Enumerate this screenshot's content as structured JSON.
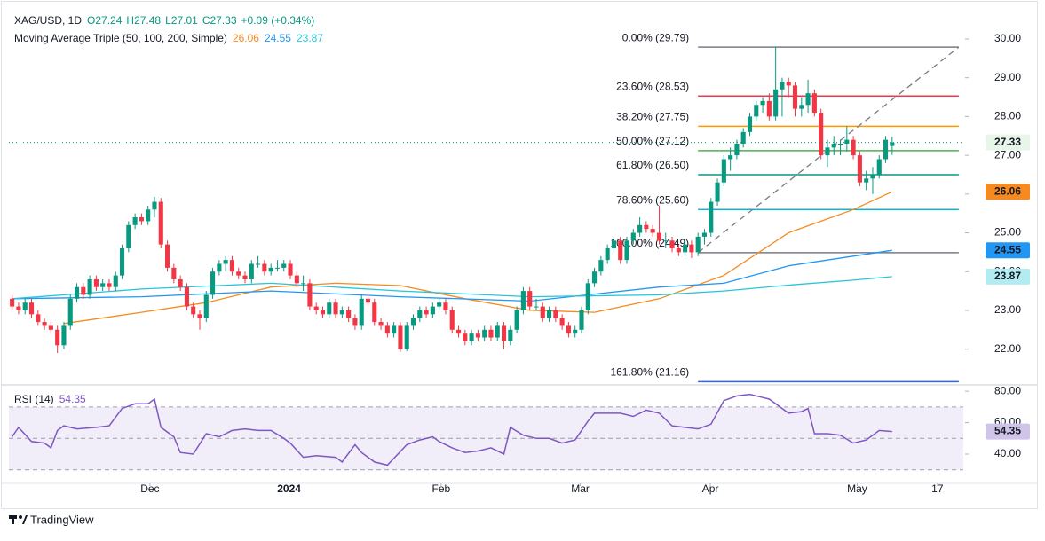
{
  "chart_data": {
    "type": "candlestick",
    "symbol": "XAG/USD, 1D",
    "ohlc_header": [
      "O27.24",
      "H27.48",
      "L27.01",
      "C27.33",
      "+0.09 (+0.34%)"
    ],
    "legend_title": "Moving Average Triple (50, 100, 200, Simple)",
    "up_color": "#089981",
    "down_color": "#f23645",
    "ylim": [
      21.1,
      30.8
    ],
    "yticks": [
      {
        "value": 22,
        "label": "22.00"
      },
      {
        "value": 23,
        "label": "23.00"
      },
      {
        "value": 24,
        "label": "24.00"
      },
      {
        "value": 25,
        "label": "25.00"
      },
      {
        "value": 26,
        "label": "26.00"
      },
      {
        "value": 27,
        "label": "27.00"
      },
      {
        "value": 28,
        "label": "28.00"
      },
      {
        "value": 29,
        "label": "29.00"
      },
      {
        "value": 30,
        "label": "30.00"
      }
    ],
    "xlim": [
      -0.5,
      147
    ],
    "xticks": [
      {
        "value": 21.3,
        "label": "Dec"
      },
      {
        "value": 42.8,
        "label": "2024"
      },
      {
        "value": 66.3,
        "label": "Feb"
      },
      {
        "value": 87.8,
        "label": "Mar"
      },
      {
        "value": 107.9,
        "label": "Apr"
      },
      {
        "value": 130.6,
        "label": "May"
      },
      {
        "value": 143,
        "label": "17"
      }
    ],
    "candles": [
      [
        23.3,
        23.4,
        23.0,
        23.1
      ],
      [
        23.1,
        23.2,
        22.9,
        23.0
      ],
      [
        23.0,
        23.3,
        22.9,
        23.2
      ],
      [
        23.2,
        23.3,
        22.8,
        22.9
      ],
      [
        22.9,
        23.0,
        22.6,
        22.7
      ],
      [
        22.7,
        22.8,
        22.5,
        22.6
      ],
      [
        22.6,
        22.7,
        22.4,
        22.5
      ],
      [
        22.5,
        22.6,
        21.9,
        22.1
      ],
      [
        22.1,
        22.7,
        22.0,
        22.6
      ],
      [
        22.6,
        23.4,
        22.5,
        23.3
      ],
      [
        23.3,
        23.7,
        23.2,
        23.6
      ],
      [
        23.6,
        23.7,
        23.3,
        23.4
      ],
      [
        23.4,
        23.9,
        23.3,
        23.8
      ],
      [
        23.8,
        23.9,
        23.5,
        23.6
      ],
      [
        23.6,
        23.8,
        23.5,
        23.7
      ],
      [
        23.7,
        23.8,
        23.5,
        23.6
      ],
      [
        23.6,
        24.0,
        23.5,
        23.9
      ],
      [
        23.9,
        24.7,
        23.8,
        24.6
      ],
      [
        24.6,
        25.3,
        24.5,
        25.2
      ],
      [
        25.2,
        25.5,
        25.1,
        25.4
      ],
      [
        25.4,
        25.5,
        25.2,
        25.3
      ],
      [
        25.3,
        25.7,
        25.2,
        25.6
      ],
      [
        25.6,
        25.93,
        25.4,
        25.8
      ],
      [
        25.8,
        25.9,
        24.6,
        24.7
      ],
      [
        24.7,
        24.8,
        24.0,
        24.1
      ],
      [
        24.1,
        24.2,
        23.7,
        23.8
      ],
      [
        23.8,
        23.9,
        23.5,
        23.6
      ],
      [
        23.6,
        23.7,
        23.0,
        23.1
      ],
      [
        23.1,
        23.2,
        22.8,
        22.9
      ],
      [
        22.9,
        23.0,
        22.5,
        22.8
      ],
      [
        22.8,
        23.5,
        22.7,
        23.4
      ],
      [
        23.4,
        24.1,
        23.3,
        24.0
      ],
      [
        24.0,
        24.3,
        23.9,
        24.2
      ],
      [
        24.2,
        24.4,
        24.0,
        24.3
      ],
      [
        24.3,
        24.4,
        23.9,
        24.0
      ],
      [
        24.0,
        24.1,
        23.8,
        23.9
      ],
      [
        23.9,
        24.0,
        23.7,
        23.8
      ],
      [
        23.8,
        24.3,
        23.7,
        24.2
      ],
      [
        24.2,
        24.4,
        24.1,
        24.2
      ],
      [
        24.2,
        24.3,
        23.9,
        24.0
      ],
      [
        24.0,
        24.2,
        23.9,
        24.1
      ],
      [
        24.1,
        24.3,
        24.0,
        24.1
      ],
      [
        24.1,
        24.3,
        24.0,
        24.2
      ],
      [
        24.2,
        24.3,
        23.8,
        23.9
      ],
      [
        23.9,
        24.0,
        23.6,
        23.7
      ],
      [
        23.7,
        23.9,
        23.5,
        23.7
      ],
      [
        23.7,
        23.8,
        23.0,
        23.1
      ],
      [
        23.1,
        23.2,
        22.9,
        23.0
      ],
      [
        23.0,
        23.1,
        22.8,
        22.9
      ],
      [
        22.9,
        23.3,
        22.8,
        23.2
      ],
      [
        23.2,
        23.3,
        22.8,
        22.9
      ],
      [
        22.9,
        23.1,
        22.8,
        23.0
      ],
      [
        23.0,
        23.1,
        22.7,
        22.8
      ],
      [
        22.8,
        22.9,
        22.5,
        22.6
      ],
      [
        22.6,
        23.4,
        22.5,
        23.3
      ],
      [
        23.3,
        23.4,
        23.1,
        23.2
      ],
      [
        23.2,
        23.3,
        22.6,
        22.7
      ],
      [
        22.7,
        22.8,
        22.5,
        22.6
      ],
      [
        22.6,
        22.7,
        22.3,
        22.4
      ],
      [
        22.4,
        22.7,
        22.3,
        22.6
      ],
      [
        22.6,
        22.7,
        21.93,
        22.0
      ],
      [
        22.0,
        22.7,
        21.95,
        22.6
      ],
      [
        22.6,
        22.9,
        22.5,
        22.8
      ],
      [
        22.8,
        23.1,
        22.7,
        23.0
      ],
      [
        23.0,
        23.1,
        22.8,
        22.9
      ],
      [
        22.9,
        23.2,
        22.8,
        23.1
      ],
      [
        23.1,
        23.3,
        23.0,
        23.2
      ],
      [
        23.2,
        23.3,
        22.9,
        23.0
      ],
      [
        23.0,
        23.1,
        22.4,
        22.5
      ],
      [
        22.5,
        22.6,
        22.3,
        22.4
      ],
      [
        22.4,
        22.5,
        22.1,
        22.2
      ],
      [
        22.2,
        22.5,
        22.1,
        22.4
      ],
      [
        22.4,
        22.5,
        22.2,
        22.3
      ],
      [
        22.3,
        22.6,
        22.2,
        22.5
      ],
      [
        22.5,
        22.6,
        22.2,
        22.3
      ],
      [
        22.3,
        22.7,
        22.2,
        22.6
      ],
      [
        22.6,
        22.7,
        22.0,
        22.2
      ],
      [
        22.2,
        22.6,
        22.1,
        22.5
      ],
      [
        22.5,
        23.1,
        22.4,
        23.0
      ],
      [
        23.0,
        23.6,
        22.9,
        23.5
      ],
      [
        23.5,
        23.6,
        23.0,
        23.1
      ],
      [
        23.1,
        23.3,
        23.0,
        23.1
      ],
      [
        23.1,
        23.2,
        22.7,
        22.8
      ],
      [
        22.8,
        23.1,
        22.7,
        23.0
      ],
      [
        23.0,
        23.1,
        22.7,
        22.8
      ],
      [
        22.8,
        22.9,
        22.5,
        22.6
      ],
      [
        22.6,
        22.7,
        22.3,
        22.4
      ],
      [
        22.4,
        22.6,
        22.3,
        22.5
      ],
      [
        22.5,
        23.1,
        22.4,
        23.0
      ],
      [
        23.0,
        23.8,
        22.9,
        23.7
      ],
      [
        23.7,
        24.1,
        23.6,
        24.0
      ],
      [
        24.0,
        24.4,
        23.9,
        24.3
      ],
      [
        24.3,
        24.7,
        24.2,
        24.6
      ],
      [
        24.6,
        24.9,
        24.5,
        24.8
      ],
      [
        24.8,
        24.9,
        24.2,
        24.3
      ],
      [
        24.3,
        24.9,
        24.2,
        24.8
      ],
      [
        24.8,
        25.1,
        24.7,
        25.0
      ],
      [
        25.0,
        25.4,
        24.9,
        25.2
      ],
      [
        25.2,
        25.3,
        25.0,
        25.1
      ],
      [
        25.1,
        25.2,
        24.9,
        25.0
      ],
      [
        25.0,
        25.7,
        24.7,
        24.8
      ],
      [
        24.8,
        25.0,
        24.6,
        24.8
      ],
      [
        24.8,
        24.9,
        24.5,
        24.6
      ],
      [
        24.6,
        24.7,
        24.4,
        24.5
      ],
      [
        24.5,
        24.8,
        24.4,
        24.7
      ],
      [
        24.7,
        24.8,
        24.35,
        24.5
      ],
      [
        24.5,
        25.0,
        24.4,
        24.9
      ],
      [
        24.9,
        25.1,
        24.7,
        25.0
      ],
      [
        25.0,
        25.9,
        24.9,
        25.8
      ],
      [
        25.8,
        26.4,
        25.7,
        26.3
      ],
      [
        26.3,
        27.0,
        26.2,
        26.9
      ],
      [
        26.9,
        27.2,
        26.6,
        27.0
      ],
      [
        27.0,
        27.4,
        26.9,
        27.3
      ],
      [
        27.3,
        27.7,
        27.2,
        27.6
      ],
      [
        27.6,
        28.1,
        27.5,
        28.0
      ],
      [
        28.0,
        28.4,
        27.9,
        28.3
      ],
      [
        28.3,
        28.5,
        28.1,
        28.4
      ],
      [
        28.4,
        28.6,
        27.9,
        28.0
      ],
      [
        28.0,
        29.79,
        27.9,
        28.7
      ],
      [
        28.7,
        29.0,
        28.0,
        28.9
      ],
      [
        28.9,
        29.0,
        28.5,
        28.8
      ],
      [
        28.8,
        28.9,
        28.0,
        28.2
      ],
      [
        28.2,
        28.5,
        28.0,
        28.3
      ],
      [
        28.3,
        28.95,
        28.1,
        28.6
      ],
      [
        28.6,
        28.7,
        28.0,
        28.1
      ],
      [
        28.1,
        28.2,
        26.9,
        27.0
      ],
      [
        27.0,
        27.4,
        26.7,
        27.2
      ],
      [
        27.2,
        27.5,
        27.0,
        27.3
      ],
      [
        27.3,
        27.4,
        27.0,
        27.3
      ],
      [
        27.3,
        27.75,
        27.1,
        27.4
      ],
      [
        27.4,
        27.5,
        26.9,
        27.0
      ],
      [
        27.0,
        27.1,
        26.2,
        26.3
      ],
      [
        26.3,
        26.6,
        26.1,
        26.4
      ],
      [
        26.4,
        26.7,
        26.0,
        26.5
      ],
      [
        26.5,
        27.0,
        26.4,
        26.9
      ],
      [
        26.9,
        27.5,
        26.8,
        27.4
      ],
      [
        27.24,
        27.48,
        27.01,
        27.33
      ]
    ],
    "series": [
      {
        "color": "#f68a1e",
        "legend_value": 26.06,
        "x": [
          8,
          20,
          30,
          40,
          50,
          60,
          70,
          80,
          90,
          100,
          110,
          120,
          130,
          136
        ],
        "values": [
          22.66,
          22.95,
          23.2,
          23.6,
          23.7,
          23.64,
          23.3,
          23.0,
          22.95,
          23.3,
          23.9,
          25.0,
          25.6,
          26.06
        ]
      },
      {
        "color": "#2196f3",
        "legend_value": 24.55,
        "x": [
          0,
          20,
          40,
          60,
          80,
          100,
          110,
          120,
          130,
          136
        ],
        "values": [
          23.3,
          23.35,
          23.5,
          23.35,
          23.24,
          23.6,
          23.7,
          24.15,
          24.4,
          24.55
        ]
      },
      {
        "color": "#26c6da",
        "legend_value": 23.87,
        "x": [
          0,
          20,
          40,
          60,
          80,
          100,
          110,
          120,
          130,
          136
        ],
        "values": [
          23.3,
          23.55,
          23.7,
          23.5,
          23.35,
          23.4,
          23.5,
          23.65,
          23.78,
          23.87
        ]
      }
    ],
    "fib_x": [
      106,
      146.3
    ],
    "fib_levels": [
      {
        "label": "0.00% (29.79)",
        "value": 29.79,
        "color": "#787b86"
      },
      {
        "label": "23.60% (28.53)",
        "value": 28.53,
        "color": "#f23645"
      },
      {
        "label": "38.20% (27.75)",
        "value": 27.75,
        "color": "#ff9800"
      },
      {
        "label": "50.00% (27.12)",
        "value": 27.12,
        "color": "#4caf50"
      },
      {
        "label": "61.80% (26.50)",
        "value": 26.5,
        "color": "#089981"
      },
      {
        "label": "78.60% (25.60)",
        "value": 25.6,
        "color": "#00bcd4"
      },
      {
        "label": "100.00% (24.49)",
        "value": 24.49,
        "color": "#787b86"
      },
      {
        "label": "161.80% (21.16)",
        "value": 21.16,
        "color": "#2962ff"
      }
    ],
    "rsi": {
      "title": "RSI (14)",
      "color": "#7e57c2",
      "legend_value": 54.35,
      "ylim": [
        21.4,
        84
      ],
      "yticks": [
        {
          "value": 40,
          "label": "40.00"
        },
        {
          "value": 60,
          "label": "60.00"
        },
        {
          "value": 80,
          "label": "80.00"
        }
      ],
      "bands": [
        70,
        50,
        30
      ],
      "x": [
        0,
        1,
        3,
        5,
        6,
        7,
        8,
        10,
        13,
        15,
        17,
        19,
        21,
        22,
        23,
        25,
        26,
        28,
        30,
        32,
        34,
        36,
        38,
        40,
        42,
        43,
        45,
        47,
        50,
        51,
        53,
        54,
        56,
        58,
        61,
        63,
        65,
        66,
        68,
        70,
        72,
        74,
        76,
        77,
        79,
        81,
        83,
        85,
        87,
        89,
        90,
        92,
        94,
        96,
        98,
        100,
        102,
        104,
        106,
        108,
        110,
        112,
        114,
        116,
        117,
        120,
        122,
        123,
        124,
        126,
        128,
        130,
        132,
        134,
        136
      ],
      "values": [
        51,
        57,
        48,
        47,
        44,
        55,
        58,
        56,
        57,
        58,
        69,
        72,
        72,
        75,
        57,
        51,
        41,
        40,
        53,
        51,
        55,
        56,
        55,
        55,
        50,
        47,
        38,
        39,
        38,
        35,
        46,
        41,
        35,
        33,
        46,
        49,
        51,
        48,
        44,
        41,
        42,
        44,
        40,
        57,
        52,
        50,
        50,
        47,
        49,
        61,
        66,
        66,
        66,
        64,
        68,
        66,
        58,
        57,
        56,
        59,
        74,
        77,
        78,
        76,
        75,
        66,
        67,
        69,
        53,
        53,
        52,
        47,
        49,
        55,
        54.35
      ]
    },
    "footer": "TradingView"
  }
}
